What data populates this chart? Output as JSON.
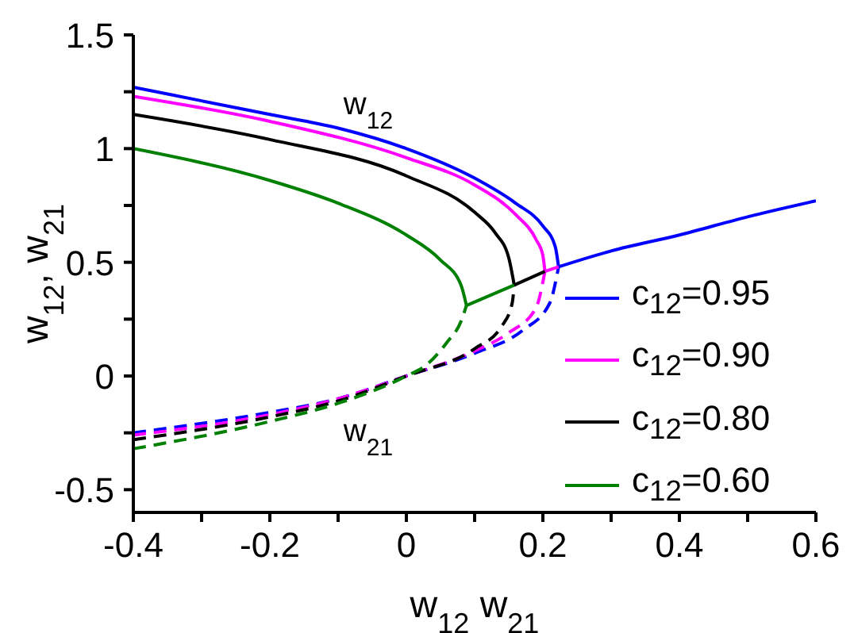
{
  "chart_data": {
    "type": "line",
    "xlabel": "w$_{12}$ w$_{21}$",
    "ylabel": "w$_{12}$,  w$_{21}$",
    "xlim": [
      -0.4,
      0.6
    ],
    "xticks": [
      -0.4,
      {
        "value": -0.3,
        "label": null
      },
      -0.2,
      {
        "value": -0.1,
        "label": null
      },
      0,
      {
        "value": 0.1,
        "label": null
      },
      0.2,
      {
        "value": 0.3,
        "label": null
      },
      0.4,
      {
        "value": 0.5,
        "label": null
      },
      0.6
    ],
    "ylim": [
      -0.6,
      1.5
    ],
    "yticks": [
      -0.5,
      {
        "value": -0.25,
        "label": null
      },
      0,
      {
        "value": 0.25,
        "label": null
      },
      0.5,
      {
        "value": 0.75,
        "label": null
      },
      1,
      {
        "value": 1.25,
        "label": null
      },
      1.5
    ],
    "legend": "bottom right",
    "annotations": [
      "w$_{12}$",
      "w$_{21}$"
    ],
    "series": [
      {
        "name": "c$_{12}$=0.95",
        "color": "#0000ff",
        "line_style": "solid",
        "x": [
          -0.4,
          -0.3,
          -0.2,
          -0.1,
          0,
          0.1,
          0.16,
          0.2,
          0.218,
          0.223
        ],
        "values": [
          1.27,
          1.21,
          1.15,
          1.09,
          1.0,
          0.87,
          0.76,
          0.66,
          0.57,
          0.48
        ]
      },
      {
        "color": "#0000ff",
        "line_style": "dashed",
        "x": [
          -0.4,
          -0.2,
          -0.1,
          0,
          0.1,
          0.17,
          0.21,
          0.223
        ],
        "values": [
          -0.25,
          -0.16,
          -0.1,
          0,
          0.1,
          0.2,
          0.32,
          0.48
        ]
      },
      {
        "color": "#0000ff",
        "line_style": "solid",
        "x": [
          0.223,
          0.3,
          0.4,
          0.5,
          0.6
        ],
        "values": [
          0.48,
          0.55,
          0.62,
          0.7,
          0.77
        ]
      },
      {
        "name": "c$_{12}$=0.90",
        "color": "#ff00ff",
        "line_style": "solid",
        "x": [
          -0.4,
          -0.2,
          0,
          0.1,
          0.16,
          0.19,
          0.2,
          0.203
        ],
        "values": [
          1.23,
          1.12,
          0.96,
          0.84,
          0.71,
          0.6,
          0.53,
          0.46
        ]
      },
      {
        "color": "#ff00ff",
        "line_style": "dashed",
        "x": [
          -0.4,
          -0.2,
          -0.1,
          0,
          0.1,
          0.15,
          0.19,
          0.203
        ],
        "values": [
          -0.26,
          -0.17,
          -0.1,
          0,
          0.11,
          0.19,
          0.3,
          0.46
        ]
      },
      {
        "color": "#ff00ff",
        "line_style": "solid",
        "x": [
          0.203,
          0.223
        ],
        "values": [
          0.46,
          0.48
        ]
      },
      {
        "name": "c$_{12}$=0.80",
        "color": "#000000",
        "line_style": "solid",
        "x": [
          -0.4,
          -0.2,
          0,
          0.1,
          0.13,
          0.15,
          0.158
        ],
        "values": [
          1.15,
          1.04,
          0.88,
          0.72,
          0.63,
          0.52,
          0.4
        ]
      },
      {
        "color": "#000000",
        "line_style": "dashed",
        "x": [
          -0.4,
          -0.2,
          -0.1,
          0,
          0.1,
          0.14,
          0.155,
          0.158
        ],
        "values": [
          -0.28,
          -0.18,
          -0.11,
          0,
          0.12,
          0.22,
          0.32,
          0.4
        ]
      },
      {
        "color": "#000000",
        "line_style": "solid",
        "x": [
          0.158,
          0.203
        ],
        "values": [
          0.4,
          0.46
        ]
      },
      {
        "name": "c$_{12}$=0.60",
        "color": "#008000",
        "line_style": "solid",
        "x": [
          -0.4,
          -0.2,
          -0.1,
          0,
          0.05,
          0.08,
          0.088
        ],
        "values": [
          1.0,
          0.86,
          0.76,
          0.62,
          0.51,
          0.4,
          0.31
        ]
      },
      {
        "color": "#008000",
        "line_style": "dashed",
        "x": [
          -0.4,
          -0.2,
          -0.1,
          0,
          0.03,
          0.06,
          0.08,
          0.088
        ],
        "values": [
          -0.32,
          -0.2,
          -0.12,
          0,
          0.05,
          0.15,
          0.24,
          0.31
        ]
      },
      {
        "color": "#008000",
        "line_style": "solid",
        "x": [
          0.088,
          0.158
        ],
        "values": [
          0.31,
          0.4
        ]
      }
    ]
  }
}
